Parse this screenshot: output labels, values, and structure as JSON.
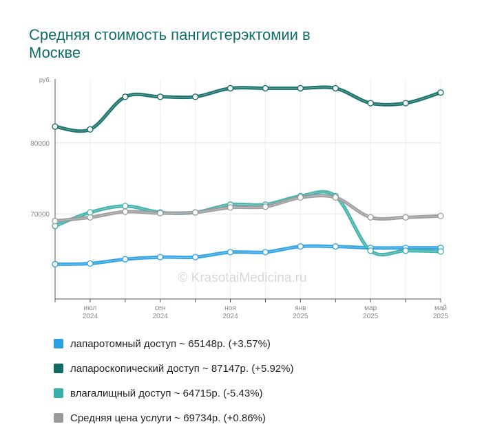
{
  "title": "Средняя стоимость пангистерэктомии в Москве",
  "watermark": "© KrasotaiMedicina.ru",
  "chart_data": {
    "type": "line",
    "y_unit": "руб.",
    "ylim": [
      58000,
      89000
    ],
    "yticks": [
      70000,
      80000
    ],
    "grid": true,
    "legend_placement": "bottom",
    "x_ticks": [
      {
        "month": "июл",
        "year": "2024"
      },
      {
        "month": "сен",
        "year": "2024"
      },
      {
        "month": "ноя",
        "year": "2024"
      },
      {
        "month": "янв",
        "year": "2025"
      },
      {
        "month": "мар",
        "year": "2025"
      },
      {
        "month": "май",
        "year": "2025"
      }
    ],
    "x": [
      "2024-06",
      "2024-07",
      "2024-08",
      "2024-09",
      "2024-10",
      "2024-11",
      "2024-12",
      "2025-01",
      "2025-02",
      "2025-03",
      "2025-04",
      "2025-05"
    ],
    "series": [
      {
        "name": "лапаротомный доступ",
        "color": "#2aa0e3",
        "values": [
          62900,
          63000,
          63600,
          63900,
          63900,
          64600,
          64600,
          65400,
          65400,
          65200,
          65200,
          65200
        ]
      },
      {
        "name": "лапароскопический доступ",
        "color": "#0f6b63",
        "values": [
          82300,
          81900,
          86500,
          86500,
          86500,
          87700,
          87700,
          87700,
          87700,
          85600,
          85600,
          87100
        ]
      },
      {
        "name": "влагалищный доступ",
        "color": "#3aafa9",
        "values": [
          68300,
          70200,
          71100,
          70200,
          70200,
          71300,
          71300,
          72500,
          72500,
          64800,
          64800,
          64700
        ]
      },
      {
        "name": "Средняя цена услуги",
        "color": "#9b9b9b",
        "values": [
          69000,
          69500,
          70300,
          70100,
          70200,
          70900,
          71000,
          72300,
          72300,
          69500,
          69500,
          69700
        ]
      }
    ]
  },
  "legend": [
    {
      "label": "лапаротомный доступ ~ 65148р. (+3.57%)",
      "color": "#2aa0e3"
    },
    {
      "label": "лапароскопический доступ ~ 87147р. (+5.92%)",
      "color": "#0f6b63"
    },
    {
      "label": "влагалищный доступ ~ 64715р. (-5.43%)",
      "color": "#3aafa9"
    },
    {
      "label": "Средняя цена услуги ~ 69734р. (+0.86%)",
      "color": "#9b9b9b"
    }
  ]
}
